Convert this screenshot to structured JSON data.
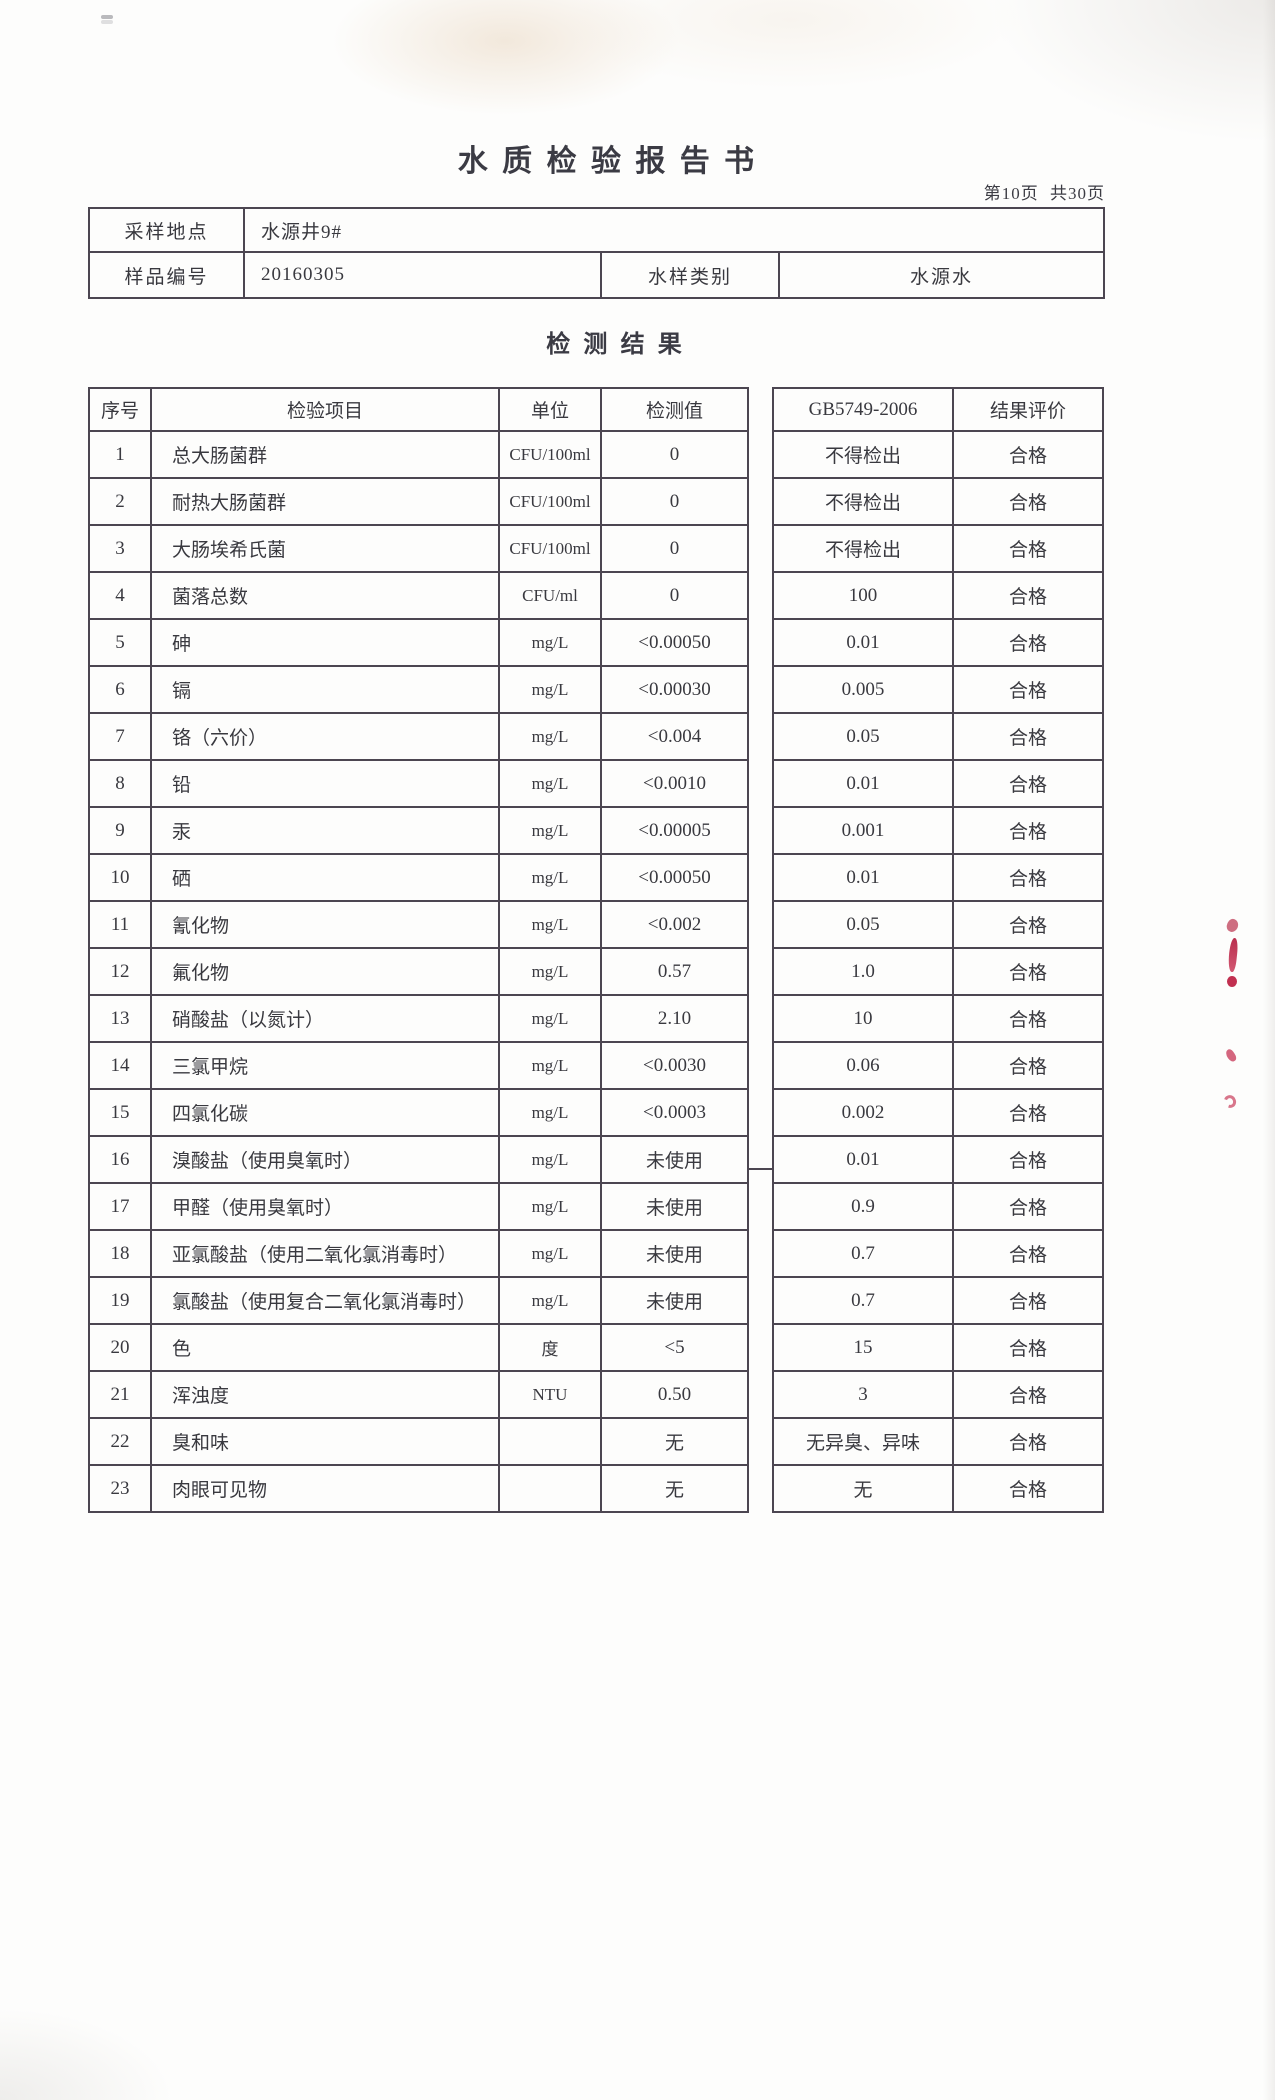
{
  "report": {
    "title": "水质检验报告书",
    "page_indicator": "第10页 共30页",
    "section_title": "检测结果"
  },
  "sample_info": {
    "location_label": "采样地点",
    "location_value": "水源井9#",
    "sample_no_label": "样品编号",
    "sample_no_value": "20160305",
    "water_type_label": "水样类别",
    "water_type_value": "水源水"
  },
  "results": {
    "columns": {
      "seq": "序号",
      "item": "检验项目",
      "unit": "单位",
      "value": "检测值",
      "standard": "GB5749-2006",
      "evaluation": "结果评价"
    },
    "rows": [
      {
        "seq": "1",
        "item": "总大肠菌群",
        "unit": "CFU/100ml",
        "value": "0",
        "standard": "不得检出",
        "evaluation": "合格"
      },
      {
        "seq": "2",
        "item": "耐热大肠菌群",
        "unit": "CFU/100ml",
        "value": "0",
        "standard": "不得检出",
        "evaluation": "合格"
      },
      {
        "seq": "3",
        "item": "大肠埃希氏菌",
        "unit": "CFU/100ml",
        "value": "0",
        "standard": "不得检出",
        "evaluation": "合格"
      },
      {
        "seq": "4",
        "item": "菌落总数",
        "unit": "CFU/ml",
        "value": "0",
        "standard": "100",
        "evaluation": "合格"
      },
      {
        "seq": "5",
        "item": "砷",
        "unit": "mg/L",
        "value": "<0.00050",
        "standard": "0.01",
        "evaluation": "合格"
      },
      {
        "seq": "6",
        "item": "镉",
        "unit": "mg/L",
        "value": "<0.00030",
        "standard": "0.005",
        "evaluation": "合格"
      },
      {
        "seq": "7",
        "item": "铬（六价）",
        "unit": "mg/L",
        "value": "<0.004",
        "standard": "0.05",
        "evaluation": "合格"
      },
      {
        "seq": "8",
        "item": "铅",
        "unit": "mg/L",
        "value": "<0.0010",
        "standard": "0.01",
        "evaluation": "合格"
      },
      {
        "seq": "9",
        "item": "汞",
        "unit": "mg/L",
        "value": "<0.00005",
        "standard": "0.001",
        "evaluation": "合格"
      },
      {
        "seq": "10",
        "item": "硒",
        "unit": "mg/L",
        "value": "<0.00050",
        "standard": "0.01",
        "evaluation": "合格"
      },
      {
        "seq": "11",
        "item": "氰化物",
        "unit": "mg/L",
        "value": "<0.002",
        "standard": "0.05",
        "evaluation": "合格"
      },
      {
        "seq": "12",
        "item": "氟化物",
        "unit": "mg/L",
        "value": "0.57",
        "standard": "1.0",
        "evaluation": "合格"
      },
      {
        "seq": "13",
        "item": "硝酸盐（以氮计）",
        "unit": "mg/L",
        "value": "2.10",
        "standard": "10",
        "evaluation": "合格"
      },
      {
        "seq": "14",
        "item": "三氯甲烷",
        "unit": "mg/L",
        "value": "<0.0030",
        "standard": "0.06",
        "evaluation": "合格"
      },
      {
        "seq": "15",
        "item": "四氯化碳",
        "unit": "mg/L",
        "value": "<0.0003",
        "standard": "0.002",
        "evaluation": "合格"
      },
      {
        "seq": "16",
        "item": "溴酸盐（使用臭氧时）",
        "unit": "mg/L",
        "value": "未使用",
        "standard": "0.01",
        "evaluation": "合格"
      },
      {
        "seq": "17",
        "item": "甲醛（使用臭氧时）",
        "unit": "mg/L",
        "value": "未使用",
        "standard": "0.9",
        "evaluation": "合格"
      },
      {
        "seq": "18",
        "item": "亚氯酸盐（使用二氧化氯消毒时）",
        "unit": "mg/L",
        "value": "未使用",
        "standard": "0.7",
        "evaluation": "合格"
      },
      {
        "seq": "19",
        "item": "氯酸盐（使用复合二氧化氯消毒时）",
        "unit": "mg/L",
        "value": "未使用",
        "standard": "0.7",
        "evaluation": "合格"
      },
      {
        "seq": "20",
        "item": "色",
        "unit": "度",
        "value": "<5",
        "standard": "15",
        "evaluation": "合格"
      },
      {
        "seq": "21",
        "item": "浑浊度",
        "unit": "NTU",
        "value": "0.50",
        "standard": "3",
        "evaluation": "合格"
      },
      {
        "seq": "22",
        "item": "臭和味",
        "unit": "",
        "value": "无",
        "standard": "无异臭、异味",
        "evaluation": "合格"
      },
      {
        "seq": "23",
        "item": "肉眼可见物",
        "unit": "",
        "value": "无",
        "standard": "无",
        "evaluation": "合格"
      }
    ]
  },
  "artifacts": {
    "red_ink_color": "#c43b56"
  }
}
